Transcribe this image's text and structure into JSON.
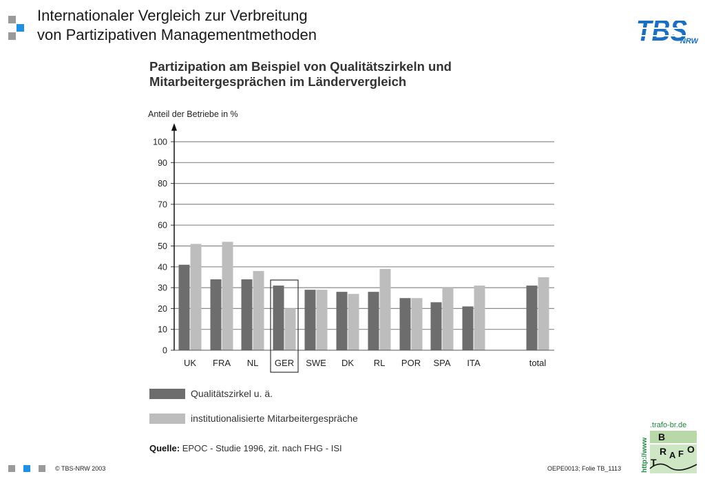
{
  "slide": {
    "title_line1": "Internationaler Vergleich zur Verbreitung",
    "title_line2": "von Partizipativen Managementmethoden",
    "logo_text": "TBS",
    "logo_sub": "NRW",
    "copyright": "© TBS-NRW 2003",
    "slide_ref": "OEPE0013; Folie TB_1113",
    "trafo_url": ".trafo-br.de",
    "trafo_prefix": "http://www",
    "trafo_b": "B",
    "trafo_r": "R",
    "trafo_a": "A",
    "trafo_f": "F",
    "trafo_o": "O",
    "trafo_t": "T"
  },
  "chart_title_line1": "Partizipation am Beispiel von Qualitätszirkeln und",
  "chart_title_line2": "Mitarbeitergesprächen im Ländervergleich",
  "source_label": "Quelle:",
  "source_text": " EPOC - Studie 1996, zit.  nach  FHG -  ISI",
  "colors": {
    "series1": "#6d6d6d",
    "series2": "#bdbdbd",
    "grid": "#8a8a8a",
    "accent_blue": "#1e90e8",
    "logo_blue": "#1a6fc4"
  },
  "chart_data": {
    "type": "bar",
    "title": "Partizipation am Beispiel von Qualitätszirkeln und Mitarbeitergesprächen im Ländervergleich",
    "ylabel": "Anteil der Betriebe in %",
    "xlabel": "",
    "categories": [
      "UK",
      "FRA",
      "NL",
      "GER",
      "SWE",
      "DK",
      "RL",
      "POR",
      "SPA",
      "ITA",
      "total"
    ],
    "highlighted_category": "GER",
    "ylim": [
      0,
      100
    ],
    "yticks": [
      0,
      10,
      20,
      30,
      40,
      50,
      60,
      70,
      80,
      90,
      100
    ],
    "grid": true,
    "legend_position": "bottom",
    "series": [
      {
        "name": "Qualitätszirkel u. ä.",
        "values": [
          41,
          34,
          34,
          31,
          29,
          28,
          28,
          25,
          23,
          21,
          31
        ]
      },
      {
        "name": "institutionalisierte Mitarbeitergespräche",
        "values": [
          51,
          52,
          38,
          20,
          29,
          27,
          39,
          25,
          30,
          31,
          35
        ]
      }
    ]
  }
}
